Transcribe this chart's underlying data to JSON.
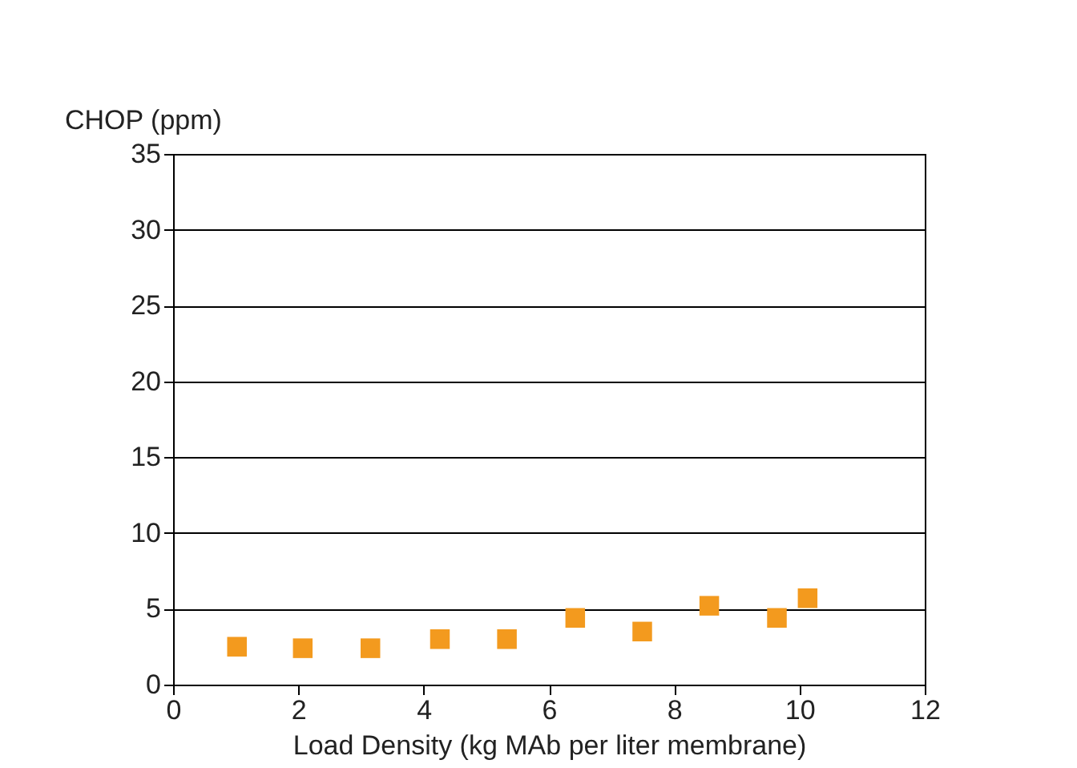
{
  "chart_data": {
    "type": "scatter",
    "xlabel": "Load Density (kg MAb per liter membrane)",
    "ylabel": "CHOP (ppm)",
    "x": [
      1.02,
      2.07,
      3.15,
      4.26,
      5.33,
      6.42,
      7.49,
      8.56,
      9.64,
      10.13
    ],
    "series": [
      {
        "color": "#f39a1e",
        "values": [
          2.5,
          2.4,
          2.4,
          3.0,
          3.0,
          4.4,
          3.5,
          5.2,
          4.4,
          5.7
        ]
      }
    ],
    "xlim": [
      0,
      12
    ],
    "xticks": [
      0,
      2,
      4,
      6,
      8,
      10,
      12
    ],
    "ylim": [
      0,
      35
    ],
    "yticks": [
      0,
      5,
      10,
      15,
      20,
      25,
      30,
      35
    ],
    "grid": "y",
    "marker": "square"
  }
}
